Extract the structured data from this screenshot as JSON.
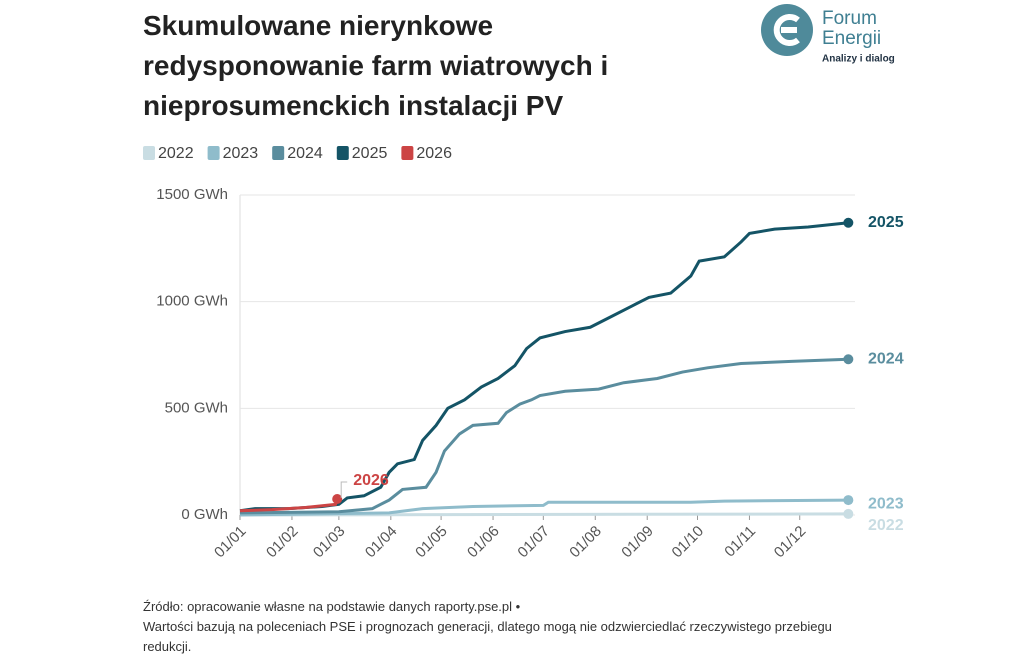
{
  "header": {
    "title": "Skumulowane nierynkowe redysponowanie farm wiatrowych i nieprosumenckich instalacji PV"
  },
  "logo": {
    "line1": "Forum",
    "line2": "Energii",
    "tagline": "Analizy i dialog"
  },
  "footer": {
    "source": "Źródło: opracowanie własne na podstawie danych raporty.pse.pl •",
    "note": "Wartości bazują na poleceniach PSE i prognozach generacji, dlatego mogą nie odzwierciedlać rzeczywistego przebiegu redukcji."
  },
  "chart_data": {
    "type": "line",
    "xlim": [
      1,
      365
    ],
    "xticks": [
      {
        "value": 1,
        "label": "01/01"
      },
      {
        "value": 32,
        "label": "01/02"
      },
      {
        "value": 60,
        "label": "01/03"
      },
      {
        "value": 91,
        "label": "01/04"
      },
      {
        "value": 121,
        "label": "01/05"
      },
      {
        "value": 152,
        "label": "01/06"
      },
      {
        "value": 182,
        "label": "01/07"
      },
      {
        "value": 213,
        "label": "01/08"
      },
      {
        "value": 244,
        "label": "01/09"
      },
      {
        "value": 274,
        "label": "01/10"
      },
      {
        "value": 305,
        "label": "01/11"
      },
      {
        "value": 335,
        "label": "01/12"
      }
    ],
    "ylim": [
      0,
      1500
    ],
    "yticks": [
      {
        "value": 0,
        "label": "0 GWh"
      },
      {
        "value": 500,
        "label": "500 GWh"
      },
      {
        "value": 1000,
        "label": "1000 GWh"
      },
      {
        "value": 1500,
        "label": "1500 GWh"
      }
    ],
    "grid": true,
    "series": [
      {
        "name": "2022",
        "color": "#c9dde3",
        "x": [
          1,
          364
        ],
        "values": [
          0,
          5
        ]
      },
      {
        "name": "2023",
        "color": "#8fbccb",
        "x": [
          1,
          90,
          110,
          140,
          182,
          185,
          270,
          290,
          364
        ],
        "values": [
          0,
          10,
          30,
          40,
          45,
          60,
          60,
          65,
          70
        ]
      },
      {
        "name": "2024",
        "color": "#5a8d9e",
        "x": [
          1,
          60,
          80,
          90,
          98,
          112,
          118,
          123,
          132,
          140,
          155,
          160,
          168,
          175,
          180,
          195,
          215,
          230,
          250,
          265,
          280,
          300,
          330,
          364
        ],
        "values": [
          10,
          15,
          30,
          70,
          120,
          130,
          200,
          300,
          380,
          420,
          430,
          480,
          520,
          540,
          560,
          580,
          590,
          620,
          640,
          670,
          690,
          710,
          720,
          730
        ]
      },
      {
        "name": "2025",
        "color": "#145466",
        "x": [
          1,
          10,
          30,
          50,
          60,
          65,
          75,
          85,
          90,
          95,
          105,
          110,
          118,
          125,
          135,
          145,
          155,
          165,
          172,
          180,
          195,
          210,
          220,
          235,
          245,
          258,
          270,
          275,
          290,
          300,
          305,
          320,
          340,
          364
        ],
        "values": [
          20,
          30,
          30,
          40,
          50,
          80,
          90,
          130,
          200,
          240,
          260,
          350,
          420,
          500,
          540,
          600,
          640,
          700,
          780,
          830,
          860,
          880,
          920,
          980,
          1020,
          1040,
          1120,
          1190,
          1210,
          1280,
          1320,
          1340,
          1350,
          1370
        ]
      },
      {
        "name": "2026",
        "color": "#cc4444",
        "x": [
          1,
          20,
          40,
          58,
          59
        ],
        "values": [
          20,
          25,
          35,
          50,
          75
        ]
      }
    ]
  }
}
